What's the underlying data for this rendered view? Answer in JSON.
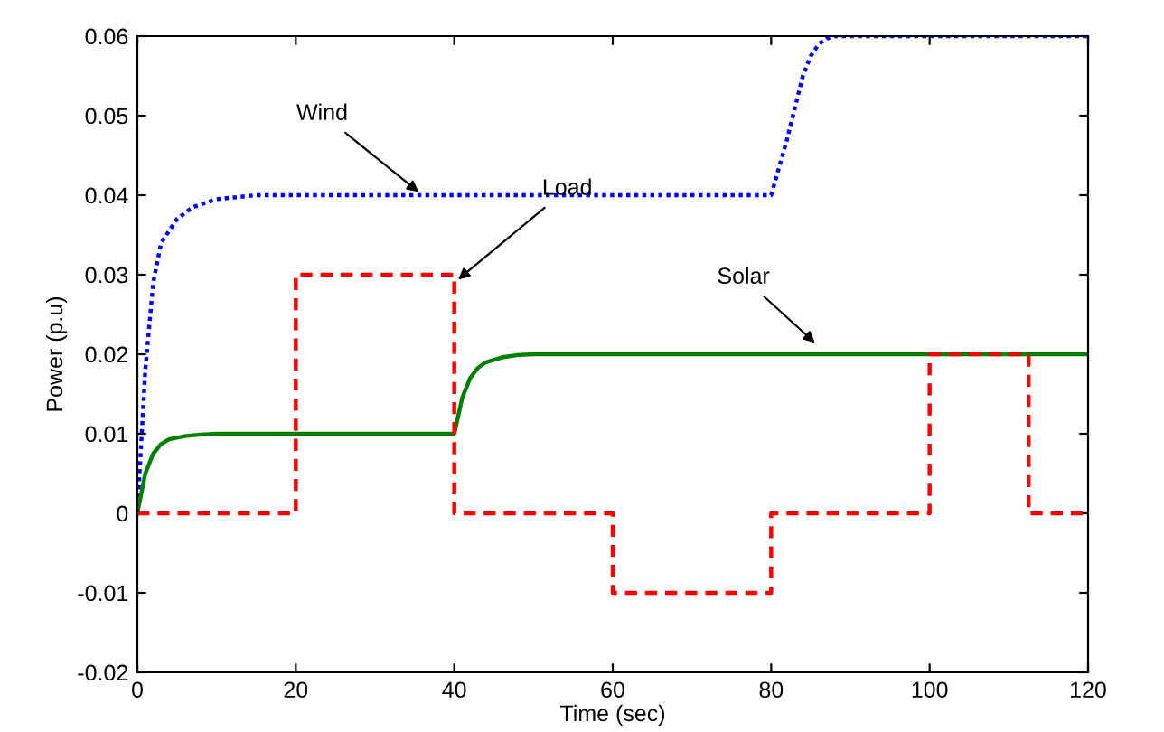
{
  "chart_data": {
    "type": "line",
    "xlabel": "Time (sec)",
    "ylabel": "Power (p.u)",
    "xlim": [
      0,
      120
    ],
    "xticks": [
      0,
      20,
      40,
      60,
      80,
      100,
      120
    ],
    "ylim": [
      -0.02,
      0.06
    ],
    "yticks": [
      {
        "value": -0.02,
        "label": "-0.02"
      },
      {
        "value": -0.01,
        "label": "-0.01"
      },
      0,
      0.01,
      0.02,
      0.03,
      0.04,
      0.05,
      0.06
    ],
    "grid": false,
    "series": [
      {
        "line_style": "dotted",
        "color": "#0000ff",
        "x": [
          0,
          1,
          2,
          3,
          5,
          7,
          10,
          15,
          20,
          40,
          80,
          81,
          82,
          83,
          84,
          85,
          86,
          87,
          88,
          90,
          120
        ],
        "values": [
          0,
          0.018,
          0.029,
          0.034,
          0.037,
          0.0385,
          0.0395,
          0.04,
          0.04,
          0.04,
          0.04,
          0.0435,
          0.047,
          0.051,
          0.055,
          0.0575,
          0.059,
          0.0597,
          0.06,
          0.06,
          0.06
        ]
      },
      {
        "line_style": "solid",
        "color": "#008000",
        "x": [
          0,
          1,
          2,
          3,
          4,
          6,
          8,
          10,
          40,
          41,
          42,
          43,
          44,
          46,
          48,
          50,
          120
        ],
        "values": [
          0,
          0.005,
          0.0075,
          0.0087,
          0.0093,
          0.0097,
          0.0099,
          0.01,
          0.01,
          0.0145,
          0.017,
          0.0183,
          0.019,
          0.0196,
          0.0199,
          0.02,
          0.02
        ]
      },
      {
        "type": "step",
        "line_style": "dashed",
        "color": "#ff0000",
        "x": [
          0,
          20,
          40,
          60,
          80,
          100,
          112.5,
          120
        ],
        "values": [
          0,
          0.03,
          0,
          -0.01,
          0,
          0.02,
          0,
          0
        ]
      }
    ],
    "annotations": [
      {
        "text": "Wind",
        "x": 36,
        "y": 0.04
      },
      {
        "text": "Load",
        "x": 40,
        "y": 0.029
      },
      {
        "text": "Solar",
        "x": 86,
        "y": 0.021
      }
    ]
  }
}
